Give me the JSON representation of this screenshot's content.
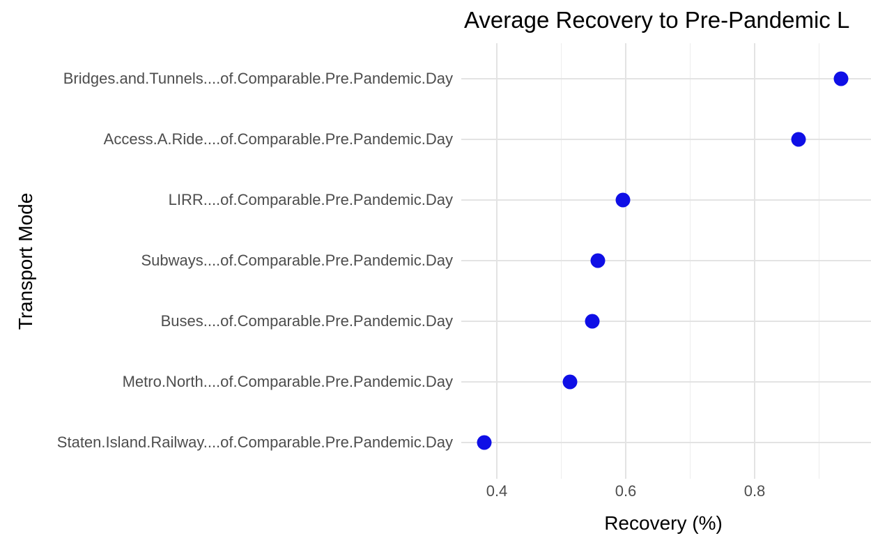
{
  "chart": {
    "title": "Average Recovery to Pre-Pandemic L",
    "x_axis_title": "Recovery (%)",
    "y_axis_title": "Transport Mode"
  },
  "chart_data": {
    "type": "scatter",
    "subtype": "cleveland-dot-plot",
    "title": "Average Recovery to Pre-Pandemic L",
    "xlabel": "Recovery (%)",
    "ylabel": "Transport Mode",
    "categories": [
      "Bridges.and.Tunnels....of.Comparable.Pre.Pandemic.Day",
      "Access.A.Ride....of.Comparable.Pre.Pandemic.Day",
      "LIRR....of.Comparable.Pre.Pandemic.Day",
      "Subways....of.Comparable.Pre.Pandemic.Day",
      "Buses....of.Comparable.Pre.Pandemic.Day",
      "Metro.North....of.Comparable.Pre.Pandemic.Day",
      "Staten.Island.Railway....of.Comparable.Pre.Pandemic.Day"
    ],
    "values": [
      0.934,
      0.868,
      0.596,
      0.557,
      0.548,
      0.514,
      0.381
    ],
    "x_ticks": [
      0.4,
      0.6,
      0.8
    ],
    "x_tick_labels": [
      "0.4",
      "0.6",
      "0.8"
    ],
    "x_minor_ticks": [
      0.5,
      0.7,
      0.9
    ],
    "xlim": [
      0.346,
      0.98
    ],
    "grid": true,
    "legend": false,
    "colors": {
      "point": "#0F0FE6",
      "grid_major": "#E3E3E3",
      "grid_minor": "#EDEDED",
      "axis_text": "#4D4D4D",
      "title_text": "#000000"
    }
  }
}
